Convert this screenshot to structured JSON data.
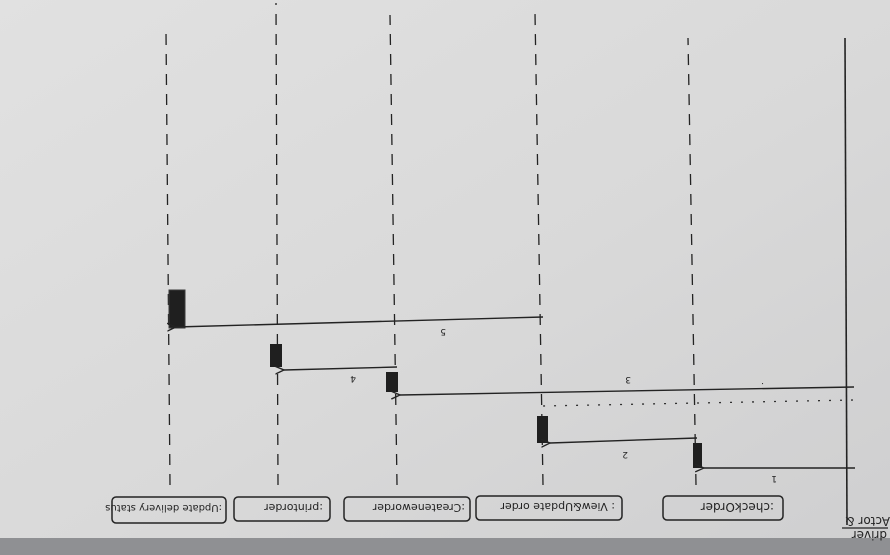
{
  "diagram": {
    "actor_label": "Actor &",
    "actor_sublabel": "driver",
    "participants": [
      {
        "id": "check-order",
        "label": ":checkOrder"
      },
      {
        "id": "view-update-order",
        "label": ": View&Update order"
      },
      {
        "id": "create-new-order",
        "label": ":Createneworder"
      },
      {
        "id": "print-order",
        "label": ":printorder"
      },
      {
        "id": "update-delivery-status",
        "label": ":Update delivery status"
      }
    ],
    "messages": [
      {
        "number": "1",
        "from": "actor",
        "to": "check-order"
      },
      {
        "number": "2",
        "from": "check-order",
        "to": "view-update-order"
      },
      {
        "number": "3",
        "from": "actor",
        "to": "create-new-order"
      },
      {
        "number": "4",
        "from": "create-new-order",
        "to": "print-order"
      },
      {
        "number": "5",
        "from": "view-update-order",
        "to": "update-delivery-status"
      }
    ]
  },
  "colors": {
    "paper": "#dcdcdc",
    "ink": "#232323",
    "shadow": "#8f9093"
  }
}
